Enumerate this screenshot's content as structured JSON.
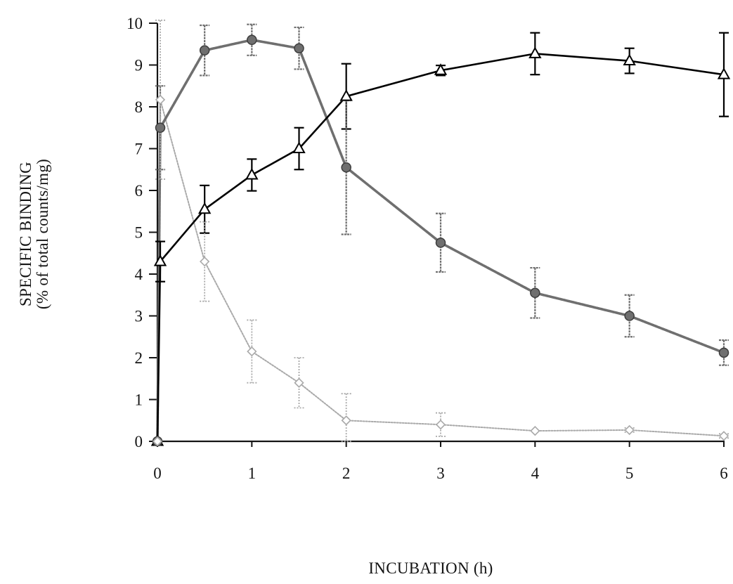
{
  "chart_data": {
    "type": "line",
    "xlabel": "INCUBATION (h)",
    "ylabel": [
      "SPECIFIC BINDING",
      "(% of total counts/mg)"
    ],
    "xlim": [
      0,
      6
    ],
    "ylim": [
      0,
      10
    ],
    "xticks": [
      0,
      1,
      2,
      3,
      4,
      5,
      6
    ],
    "yticks": [
      0,
      1,
      2,
      3,
      4,
      5,
      6,
      7,
      8,
      9,
      10
    ],
    "grid": false,
    "legend": "none",
    "error_bars": true,
    "series": [
      {
        "marker": "open-triangle",
        "color": "#000000",
        "line": "solid",
        "points": [
          {
            "x": 0,
            "y": 0
          },
          {
            "x": 0.03,
            "y": 4.3,
            "err": 0.48
          },
          {
            "x": 0.5,
            "y": 5.55,
            "err": 0.57
          },
          {
            "x": 1,
            "y": 6.37,
            "err": 0.38
          },
          {
            "x": 1.5,
            "y": 7.0,
            "err": 0.5
          },
          {
            "x": 2,
            "y": 8.25,
            "err": 0.78
          },
          {
            "x": 3,
            "y": 8.87,
            "err": 0.12
          },
          {
            "x": 4,
            "y": 9.27,
            "err": 0.5
          },
          {
            "x": 5,
            "y": 9.1,
            "err": 0.3
          },
          {
            "x": 6,
            "y": 8.77,
            "err": 1.0
          }
        ]
      },
      {
        "marker": "filled-circle",
        "color": "#6f6f6f",
        "line": "dotted",
        "points": [
          {
            "x": 0,
            "y": 0
          },
          {
            "x": 0.03,
            "y": 7.5,
            "err": 1.0
          },
          {
            "x": 0.5,
            "y": 9.35,
            "err": 0.6
          },
          {
            "x": 1,
            "y": 9.6,
            "err": 0.37
          },
          {
            "x": 1.5,
            "y": 9.4,
            "err": 0.5
          },
          {
            "x": 2,
            "y": 6.55,
            "err": 1.6
          },
          {
            "x": 3,
            "y": 4.75,
            "err": 0.7
          },
          {
            "x": 4,
            "y": 3.55,
            "err": 0.6
          },
          {
            "x": 5,
            "y": 3.0,
            "err": 0.5
          },
          {
            "x": 6,
            "y": 2.12,
            "err": 0.3
          }
        ]
      },
      {
        "marker": "open-diamond",
        "color": "#a9a9a9",
        "line": "dotted",
        "points": [
          {
            "x": 0,
            "y": 0
          },
          {
            "x": 0.03,
            "y": 8.17,
            "err": 1.9
          },
          {
            "x": 0.5,
            "y": 4.3,
            "err": 0.95
          },
          {
            "x": 1,
            "y": 2.15,
            "err": 0.75
          },
          {
            "x": 1.5,
            "y": 1.4,
            "err": 0.6
          },
          {
            "x": 2,
            "y": 0.5,
            "err": 0.64
          },
          {
            "x": 3,
            "y": 0.4,
            "err": 0.28
          },
          {
            "x": 4,
            "y": 0.25,
            "err": 0
          },
          {
            "x": 5,
            "y": 0.27,
            "err": 0.05
          },
          {
            "x": 6,
            "y": 0.13,
            "err": 0.05
          }
        ]
      }
    ]
  }
}
